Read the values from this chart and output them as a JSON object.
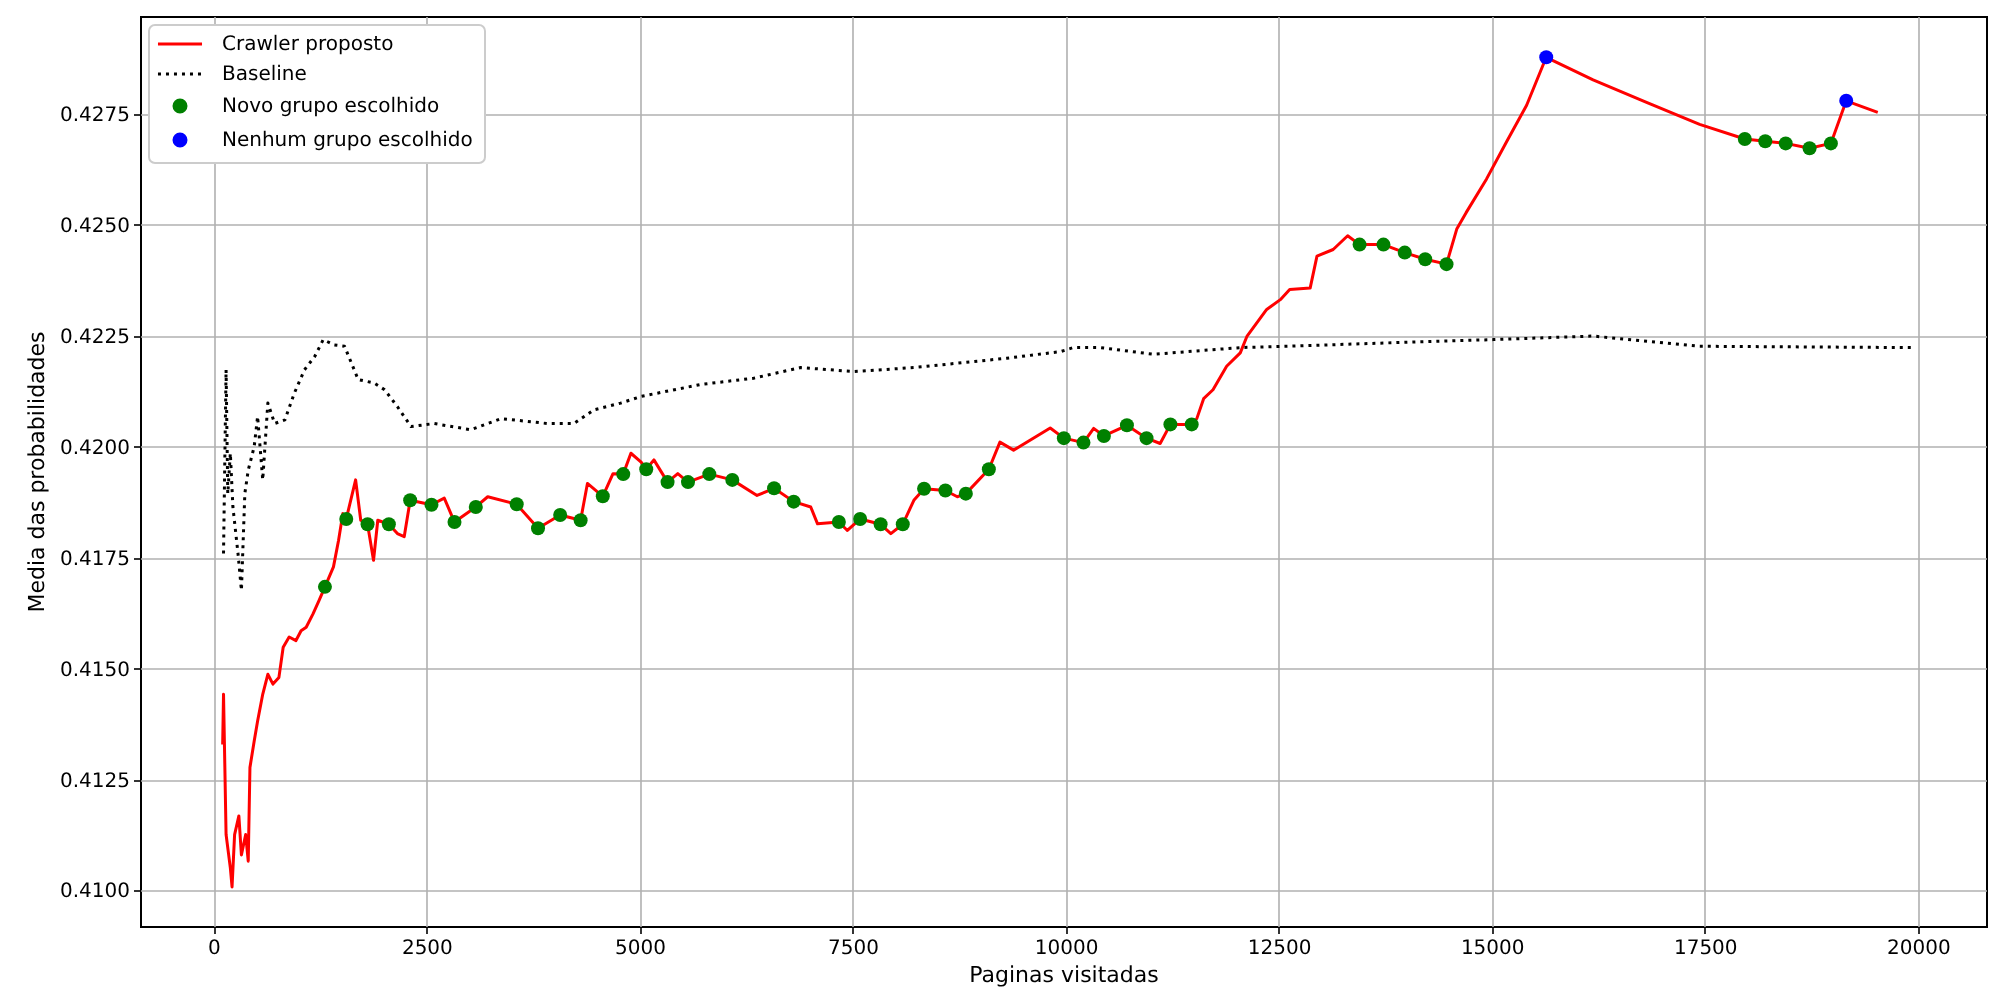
{
  "chart_data": {
    "type": "line",
    "xlabel": "Paginas visitadas",
    "ylabel": "Media das probabilidades",
    "xlim": [
      -860,
      20800
    ],
    "ylim": [
      0.4092,
      0.4297
    ],
    "xticks": [
      0,
      2500,
      5000,
      7500,
      10000,
      12500,
      15000,
      17500,
      20000
    ],
    "yticks": [
      {
        "value": 0.41,
        "label": "0.4100"
      },
      {
        "value": 0.4125,
        "label": "0.4125"
      },
      {
        "value": 0.415,
        "label": "0.4150"
      },
      {
        "value": 0.4175,
        "label": "0.4175"
      },
      {
        "value": 0.42,
        "label": "0.4200"
      },
      {
        "value": 0.4225,
        "label": "0.4225"
      },
      {
        "value": 0.425,
        "label": "0.4250"
      },
      {
        "value": 0.4275,
        "label": "0.4275"
      }
    ],
    "grid": true,
    "legend": "top left",
    "series": [
      {
        "name": "Crawler proposto",
        "color": "#ff0000",
        "line_style": "solid",
        "x": [
          110,
          120,
          150,
          200,
          220,
          250,
          300,
          330,
          380,
          410,
          430,
          480,
          520,
          580,
          640,
          700,
          770,
          820,
          890,
          970,
          1030,
          1090,
          1170,
          1240,
          1310,
          1410,
          1470,
          1520,
          1560,
          1670,
          1730,
          1810,
          1880,
          1930,
          2060,
          2160,
          2240,
          2310,
          2560,
          2710,
          2830,
          3080,
          3220,
          3560,
          3810,
          4070,
          4310,
          4390,
          4570,
          4690,
          4810,
          4900,
          5020,
          5080,
          5170,
          5330,
          5450,
          5570,
          5820,
          6090,
          6380,
          6580,
          6810,
          7010,
          7090,
          7340,
          7440,
          7590,
          7830,
          7950,
          8090,
          8220,
          8340,
          8590,
          8730,
          8830,
          9100,
          9230,
          9390,
          9820,
          9980,
          10210,
          10330,
          10450,
          10720,
          10950,
          11110,
          11230,
          11480,
          11540,
          11620,
          11730,
          11890,
          12050,
          12130,
          12360,
          12520,
          12630,
          12870,
          12950,
          13140,
          13310,
          13450,
          13730,
          13980,
          14220,
          14470,
          14590,
          14700,
          14940,
          15170,
          15410,
          15640,
          16190,
          16810,
          17440,
          17970,
          18210,
          18450,
          18730,
          18980,
          19160,
          19530
        ],
        "values": [
          0.41329,
          0.41442,
          0.41126,
          0.41051,
          0.41008,
          0.41126,
          0.41168,
          0.4108,
          0.41126,
          0.41066,
          0.41277,
          0.41337,
          0.41382,
          0.41442,
          0.41487,
          0.41465,
          0.4148,
          0.41548,
          0.41571,
          0.41563,
          0.41585,
          0.41593,
          0.41623,
          0.41653,
          0.41684,
          0.41729,
          0.41789,
          0.41849,
          0.41837,
          0.41925,
          0.41834,
          0.41825,
          0.41744,
          0.41834,
          0.41825,
          0.41804,
          0.41797,
          0.41879,
          0.41869,
          0.41884,
          0.4183,
          0.41864,
          0.41887,
          0.4187,
          0.41816,
          0.41846,
          0.41834,
          0.41917,
          0.41888,
          0.41939,
          0.41938,
          0.41985,
          0.41965,
          0.41949,
          0.4197,
          0.4192,
          0.41939,
          0.4192,
          0.41938,
          0.41925,
          0.4189,
          0.41906,
          0.41876,
          0.41864,
          0.41826,
          0.4183,
          0.41811,
          0.41837,
          0.41825,
          0.41804,
          0.41825,
          0.41879,
          0.41905,
          0.41901,
          0.41887,
          0.41894,
          0.41949,
          0.4201,
          0.41992,
          0.42042,
          0.42019,
          0.42009,
          0.42041,
          0.42024,
          0.42048,
          0.42019,
          0.42007,
          0.4205,
          0.4205,
          0.42063,
          0.42108,
          0.42128,
          0.42181,
          0.42211,
          0.42249,
          0.42309,
          0.42331,
          0.42354,
          0.42357,
          0.42429,
          0.42444,
          0.42475,
          0.42455,
          0.42455,
          0.42437,
          0.42422,
          0.42411,
          0.4249,
          0.42527,
          0.42603,
          0.42685,
          0.42769,
          0.42877,
          0.42826,
          0.42776,
          0.42726,
          0.42693,
          0.42688,
          0.42683,
          0.42672,
          0.42683,
          0.42779,
          0.42753
        ]
      },
      {
        "name": "Baseline",
        "color": "#000000",
        "line_style": "dotted",
        "x": [
          120,
          150,
          170,
          200,
          230,
          290,
          330,
          370,
          410,
          480,
          520,
          580,
          640,
          720,
          840,
          950,
          1070,
          1190,
          1290,
          1420,
          1540,
          1700,
          1890,
          2010,
          2160,
          2320,
          2590,
          3020,
          3380,
          3920,
          4230,
          4470,
          4780,
          5020,
          5720,
          6340,
          6890,
          7520,
          8220,
          9310,
          9940,
          10090,
          10410,
          11030,
          12050,
          13060,
          14160,
          15020,
          16190,
          17440,
          19940
        ],
        "values": [
          0.41759,
          0.42173,
          0.41894,
          0.41985,
          0.41864,
          0.41759,
          0.41676,
          0.41894,
          0.41947,
          0.42,
          0.42068,
          0.41925,
          0.42098,
          0.42052,
          0.4206,
          0.4212,
          0.42173,
          0.42203,
          0.42241,
          0.42229,
          0.42226,
          0.42151,
          0.42143,
          0.42128,
          0.4209,
          0.42045,
          0.42052,
          0.42038,
          0.42063,
          0.42052,
          0.42052,
          0.42083,
          0.42098,
          0.42113,
          0.4214,
          0.42154,
          0.42178,
          0.42169,
          0.42178,
          0.42199,
          0.42214,
          0.42223,
          0.42223,
          0.42208,
          0.42223,
          0.42229,
          0.42236,
          0.42241,
          0.42249,
          0.42226,
          0.42223
        ]
      },
      {
        "name": "Novo grupo escolhido",
        "type": "scatter",
        "color": "#008000",
        "marker": "circle",
        "x": [
          1310,
          1560,
          1810,
          2060,
          2310,
          2560,
          2830,
          3080,
          3560,
          3810,
          4070,
          4310,
          4570,
          4810,
          5080,
          5330,
          5570,
          5820,
          6090,
          6580,
          6810,
          7340,
          7590,
          7830,
          8090,
          8340,
          8590,
          8830,
          9100,
          9980,
          10210,
          10450,
          10720,
          10950,
          11230,
          11480,
          13450,
          13730,
          13980,
          14220,
          14470,
          17970,
          18210,
          18450,
          18730,
          18980
        ],
        "values": [
          0.41684,
          0.41837,
          0.41825,
          0.41825,
          0.41879,
          0.41869,
          0.4183,
          0.41864,
          0.4187,
          0.41816,
          0.41846,
          0.41834,
          0.41888,
          0.41938,
          0.41949,
          0.4192,
          0.4192,
          0.41938,
          0.41925,
          0.41906,
          0.41876,
          0.4183,
          0.41837,
          0.41825,
          0.41825,
          0.41905,
          0.41901,
          0.41894,
          0.41949,
          0.42019,
          0.42009,
          0.42024,
          0.42048,
          0.42019,
          0.4205,
          0.4205,
          0.42455,
          0.42455,
          0.42437,
          0.42422,
          0.42411,
          0.42693,
          0.42688,
          0.42683,
          0.42672,
          0.42683
        ]
      },
      {
        "name": "Nenhum grupo escolhido",
        "type": "scatter",
        "color": "#0000ff",
        "marker": "circle",
        "x": [
          15640,
          19160
        ],
        "values": [
          0.42877,
          0.42779
        ]
      }
    ]
  }
}
